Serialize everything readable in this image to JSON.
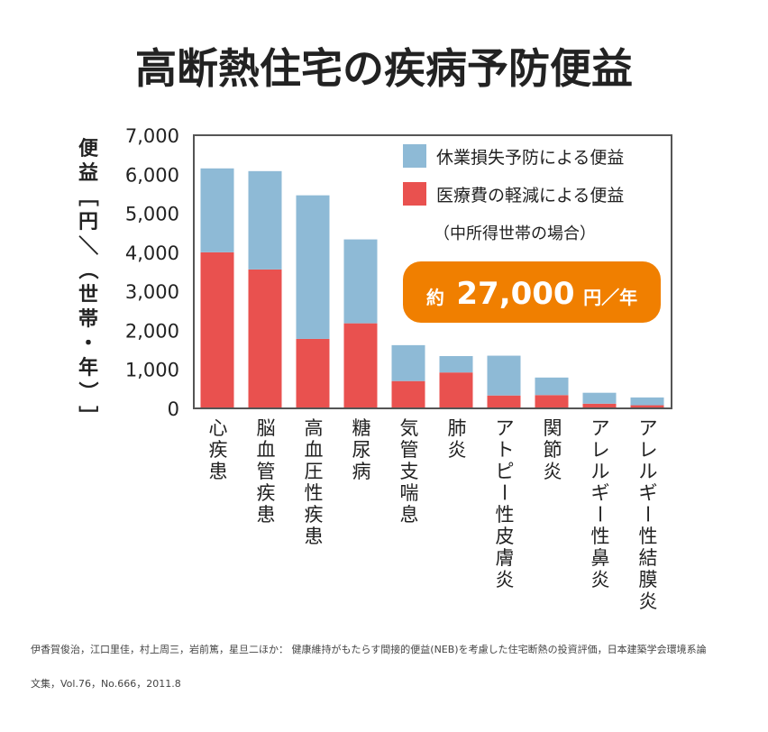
{
  "chart_data": {
    "type": "bar",
    "stacked": true,
    "title": "高断熱住宅の疾病予防便益",
    "ylabel": "便益［円／（世帯・年）］",
    "ylim": [
      0,
      7000
    ],
    "yticks": [
      "0",
      "1,000",
      "2,000",
      "3,000",
      "4,000",
      "5,000",
      "6,000",
      "7,000"
    ],
    "categories": [
      "心疾患",
      "脳血管疾患",
      "高血圧性疾患",
      "糖尿病",
      "気管支喘息",
      "肺炎",
      "アトピー性皮膚炎",
      "関節炎",
      "アレルギー性鼻炎",
      "アレルギー性結膜炎"
    ],
    "series": [
      {
        "name": "医療費の軽減による便益",
        "color": "#e9514f",
        "values": [
          4000,
          3560,
          1780,
          2180,
          700,
          920,
          330,
          340,
          120,
          80
        ]
      },
      {
        "name": "休業損失予防による便益",
        "color": "#8ebad6",
        "values": [
          2150,
          2520,
          3680,
          2150,
          920,
          420,
          1020,
          450,
          280,
          200
        ]
      }
    ],
    "legend_items": [
      "休業損失予防による便益",
      "医療費の軽減による便益"
    ],
    "legend_placement": "top-right",
    "note": "（中所得世帯の場合）",
    "highlight": {
      "prefix": "約",
      "value": "27,000",
      "unit": "円／年",
      "color": "#f07f00"
    },
    "grid": false
  },
  "citation": {
    "line1": "伊香賀俊治，江口里佳，村上周三，岩前篤，星旦二ほか： 健康維持がもたらす間接的便益(NEB)を考慮した住宅断熱の投資評価，日本建築学会環境系論",
    "line2": "文集，Vol.76，No.666，2011.8"
  }
}
